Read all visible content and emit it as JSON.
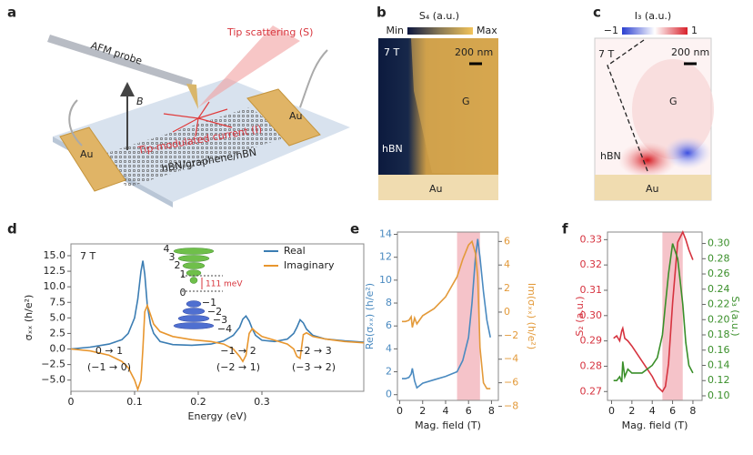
{
  "figure": {
    "panels": {
      "a": {
        "label": "a",
        "probe": "AFM probe",
        "scattering": "Tip scattering (S)",
        "field": "B",
        "pad_left": "Au",
        "pad_right": "Au",
        "current": "Tip-modulated current (I)",
        "stack": "hBN/graphene/hBN"
      },
      "b": {
        "label": "b",
        "colorbar_title": "S₄ (a.u.)",
        "min": "Min",
        "max": "Max",
        "field": "7 T",
        "scale": "200 nm",
        "region_g": "G",
        "region_hbn": "hBN",
        "region_au": "Au"
      },
      "c": {
        "label": "c",
        "colorbar_title": "I₃ (a.u.)",
        "min": "−1",
        "max": "1",
        "field": "7 T",
        "scale": "200 nm",
        "region_g": "G",
        "region_hbn": "hBN",
        "region_au": "Au"
      }
    }
  },
  "chart_data": [
    {
      "type": "line",
      "label": "d",
      "xlabel": "Energy (eV)",
      "ylabel": "σₓₓ (h/e²)",
      "xlim": [
        0,
        0.46
      ],
      "xticks": [
        0,
        0.1,
        0.2,
        0.3
      ],
      "ylim": [
        -6.8,
        16.9
      ],
      "yticks": [
        {
          "value": 15,
          "label": "15.0"
        },
        12.5,
        {
          "value": 10,
          "label": "10.0"
        },
        7.5,
        {
          "value": 5,
          "label": "5.0"
        },
        2.5,
        {
          "value": 0,
          "label": "0.0"
        },
        {
          "value": -2.5,
          "label": "−2.5"
        },
        {
          "value": -5,
          "label": "−5.0"
        }
      ],
      "legend": "upper right",
      "annotations": [
        "7 T",
        "0 → 1",
        "(−1 → 0)",
        "−1 → 2",
        "(−2 → 1)",
        "−2 → 3",
        "(−3 → 2)"
      ],
      "inset": {
        "levels": [
          "4",
          "3",
          "2",
          "1",
          "0",
          "−1",
          "−2",
          "−3",
          "−4"
        ],
        "gap": "111 meV"
      },
      "x": [
        0,
        0.03,
        0.06,
        0.08,
        0.09,
        0.1,
        0.105,
        0.11,
        0.113,
        0.116,
        0.12,
        0.125,
        0.13,
        0.14,
        0.16,
        0.19,
        0.22,
        0.24,
        0.255,
        0.265,
        0.27,
        0.275,
        0.28,
        0.285,
        0.29,
        0.3,
        0.32,
        0.34,
        0.35,
        0.355,
        0.36,
        0.365,
        0.37,
        0.38,
        0.4,
        0.43,
        0.46
      ],
      "series": [
        {
          "name": "Real",
          "color": "#3b7db3",
          "values": [
            0,
            0.3,
            0.8,
            1.5,
            2.5,
            5,
            8,
            12.5,
            14.2,
            12,
            7,
            4,
            2.5,
            1.2,
            0.7,
            0.6,
            0.8,
            1.3,
            2.2,
            3.5,
            4.8,
            5.3,
            4.5,
            3.2,
            2.2,
            1.4,
            1.2,
            1.6,
            2.5,
            3.5,
            4.7,
            4.2,
            3.2,
            2.2,
            1.6,
            1.3,
            1.1
          ]
        },
        {
          "name": "Imaginary",
          "color": "#e8962e",
          "values": [
            0,
            -0.3,
            -1,
            -2,
            -3,
            -5,
            -6.5,
            -5,
            0,
            6,
            7,
            5.5,
            4,
            2.8,
            2,
            1.5,
            1.2,
            0.8,
            0,
            -1.2,
            -2,
            -1,
            2.5,
            3.3,
            2.8,
            2,
            1.4,
            0.8,
            0,
            -1.2,
            -1.5,
            2.3,
            2.6,
            2,
            1.6,
            1.2,
            1
          ]
        }
      ]
    },
    {
      "type": "line",
      "label": "e",
      "xlabel": "Mag. field (T)",
      "ylabel": "Re(σₓₓ) (h/e²)",
      "y2label": "Im(σₓₓ) (h/e²)",
      "xlim": [
        -0.2,
        8.6
      ],
      "xticks": [
        0,
        2,
        4,
        6,
        8
      ],
      "ylim": [
        -0.5,
        14.2
      ],
      "yticks": [
        0,
        2,
        4,
        6,
        8,
        10,
        12,
        14
      ],
      "y2lim": [
        -7.5,
        6.8
      ],
      "y2ticks": [
        {
          "value": -8,
          "label": "−8"
        },
        {
          "value": -6,
          "label": "−6"
        },
        {
          "value": -4,
          "label": "−4"
        },
        {
          "value": -2,
          "label": "−2"
        },
        0,
        2,
        4,
        6
      ],
      "shaded_x": [
        5,
        7
      ],
      "x": [
        0.2,
        0.5,
        0.8,
        1.0,
        1.1,
        1.3,
        1.5,
        2,
        3,
        4,
        5,
        5.5,
        6,
        6.3,
        6.6,
        6.8,
        7,
        7.3,
        7.6,
        7.9
      ],
      "series": [
        {
          "color": "#4a8ac0",
          "values": [
            1.4,
            1.4,
            1.5,
            1.8,
            2.3,
            1.2,
            0.6,
            1.0,
            1.3,
            1.6,
            2,
            3,
            5,
            8,
            12,
            13.6,
            12,
            9,
            6.5,
            5
          ]
        },
        {
          "color": "#e39a3a",
          "axis": "y2",
          "values": [
            -0.8,
            -0.8,
            -0.7,
            -0.4,
            -1.3,
            -0.5,
            -1,
            -0.3,
            0.3,
            1.3,
            3,
            4.5,
            5.7,
            6,
            5,
            3,
            -3,
            -6,
            -6.5,
            -6.5
          ]
        }
      ]
    },
    {
      "type": "line",
      "label": "f",
      "xlabel": "Mag. field (T)",
      "ylabel": "S₂ (a.u.)",
      "y2label": "S₃ (a.u.)",
      "xlim": [
        -0.4,
        8.9
      ],
      "xticks": [
        0,
        2,
        4,
        6,
        8
      ],
      "ylim": [
        0.2665,
        0.333
      ],
      "yticks": [
        0.27,
        0.28,
        0.29,
        {
          "value": 0.3,
          "label": "0.30"
        },
        0.31,
        0.32,
        0.33
      ],
      "y2lim": [
        0.094,
        0.315
      ],
      "y2ticks": [
        {
          "value": 0.1,
          "label": "0.10"
        },
        0.12,
        0.14,
        0.16,
        0.18,
        {
          "value": 0.2,
          "label": "0.20"
        },
        0.22,
        0.24,
        0.26,
        0.28,
        {
          "value": 0.3,
          "label": "0.30"
        }
      ],
      "shaded_x": [
        5,
        7
      ],
      "x": [
        0.2,
        0.5,
        0.8,
        1,
        1.1,
        1.3,
        1.6,
        2,
        3,
        4,
        4.5,
        5,
        5.3,
        5.6,
        6,
        6.5,
        7,
        7.3,
        7.6,
        8
      ],
      "series": [
        {
          "color": "#d6333f",
          "values": [
            0.291,
            0.292,
            0.29,
            0.294,
            0.295,
            0.291,
            0.29,
            0.288,
            0.282,
            0.276,
            0.272,
            0.27,
            0.272,
            0.281,
            0.305,
            0.329,
            0.333,
            0.33,
            0.326,
            0.322
          ]
        },
        {
          "color": "#3a8f2a",
          "axis": "y2",
          "values": [
            0.12,
            0.12,
            0.125,
            0.118,
            0.145,
            0.125,
            0.135,
            0.13,
            0.13,
            0.14,
            0.15,
            0.18,
            0.22,
            0.26,
            0.3,
            0.28,
            0.22,
            0.17,
            0.14,
            0.13
          ]
        }
      ]
    }
  ]
}
